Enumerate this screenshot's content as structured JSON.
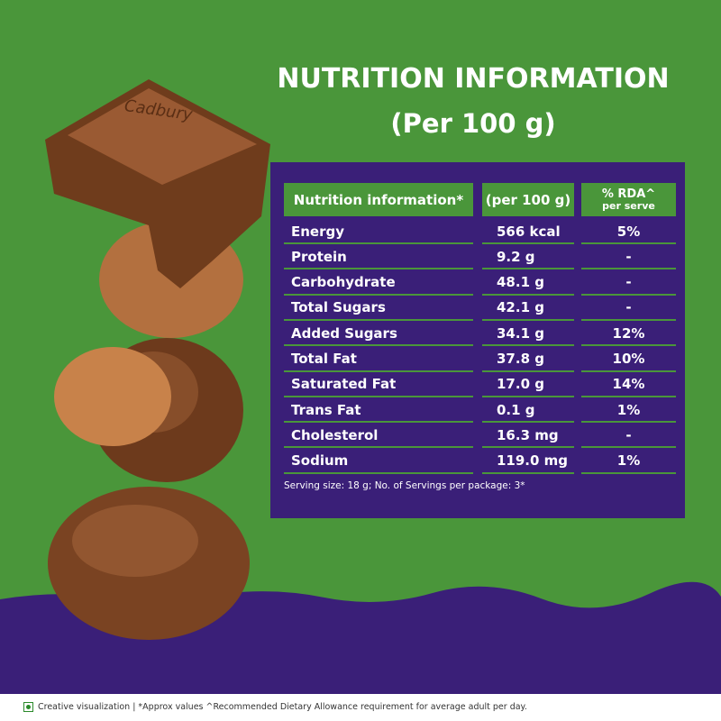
{
  "brand": "Cadbury",
  "header": {
    "title": "NUTRITION INFORMATION",
    "subtitle": "(Per 100 g)"
  },
  "table": {
    "columns": [
      "Nutrition information*",
      "(per 100 g)",
      "% RDA^",
      "per serve"
    ],
    "rows": [
      [
        "Energy",
        "566 kcal",
        "5%"
      ],
      [
        "Protein",
        "9.2 g",
        "-"
      ],
      [
        "Carbohydrate",
        "48.1 g",
        "-"
      ],
      [
        "Total Sugars",
        "42.1 g",
        "-"
      ],
      [
        "Added Sugars",
        "34.1 g",
        "12%"
      ],
      [
        "Total Fat",
        "37.8 g",
        "10%"
      ],
      [
        "Saturated Fat",
        "17.0 g",
        "14%"
      ],
      [
        "Trans Fat",
        "0.1 g",
        "1%"
      ],
      [
        "Cholesterol",
        "16.3 mg",
        "-"
      ],
      [
        "Sodium",
        "119.0 mg",
        "1%"
      ]
    ],
    "note": "Serving size: 18 g; No. of Servings per package: 3*"
  },
  "footer": "Creative visualization | *Approx values ^Recommended Dietary Allowance requirement for average adult per day."
}
